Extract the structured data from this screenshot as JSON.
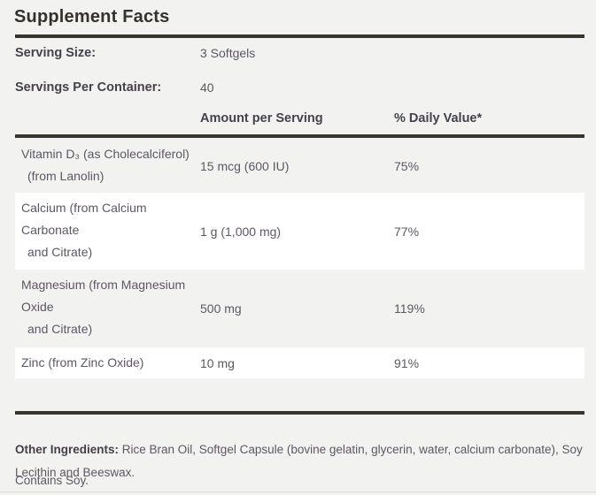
{
  "title": "Supplement Facts",
  "serving_info": {
    "size": {
      "label": "Serving Size:",
      "value": "3 Softgels"
    },
    "per_container": {
      "label": "Servings Per Container:",
      "value": "40"
    }
  },
  "table": {
    "headers": {
      "amount": "Amount per Serving",
      "daily_value": "% Daily Value*"
    },
    "rows": [
      {
        "name": "Vitamin D3 (as Cholecalciferol) (from Lanolin)",
        "name_lines": [
          "Vitamin D₃ (as Cholecalciferol)",
          "(from Lanolin)"
        ],
        "amount": "15 mcg (600 IU)",
        "daily_value": "75%"
      },
      {
        "name": "Calcium (from Calcium Carbonate and Citrate)",
        "name_lines": [
          "Calcium (from Calcium",
          "Carbonate",
          "and Citrate)"
        ],
        "amount": "1 g (1,000 mg)",
        "daily_value": "77%"
      },
      {
        "name": "Magnesium (from Magnesium Oxide and Citrate)",
        "name_lines": [
          "Magnesium (from Magnesium",
          "Oxide",
          "and Citrate)"
        ],
        "amount": "500 mg",
        "daily_value": "119%"
      },
      {
        "name": "Zinc (from Zinc Oxide)",
        "name_lines": [
          "Zinc (from Zinc Oxide)"
        ],
        "amount": "10 mg",
        "daily_value": "91%"
      }
    ]
  },
  "footer": {
    "other_ingredients_label": "Other Ingredients:",
    "other_ingredients_text": " Rice Bran Oil, Softgel Capsule (bovine gelatin, glycerin, water, calcium carbonate), Soy Lecithin and Beeswax.",
    "contains": "Contains Soy."
  },
  "colors": {
    "background": "#f2f2f1",
    "row_highlight": "#ffffff",
    "rule": "#38342e",
    "text": "#5e5762",
    "text_bold": "#46414a",
    "title": "#35312c",
    "bottom_divider": "#dbdbd9"
  }
}
